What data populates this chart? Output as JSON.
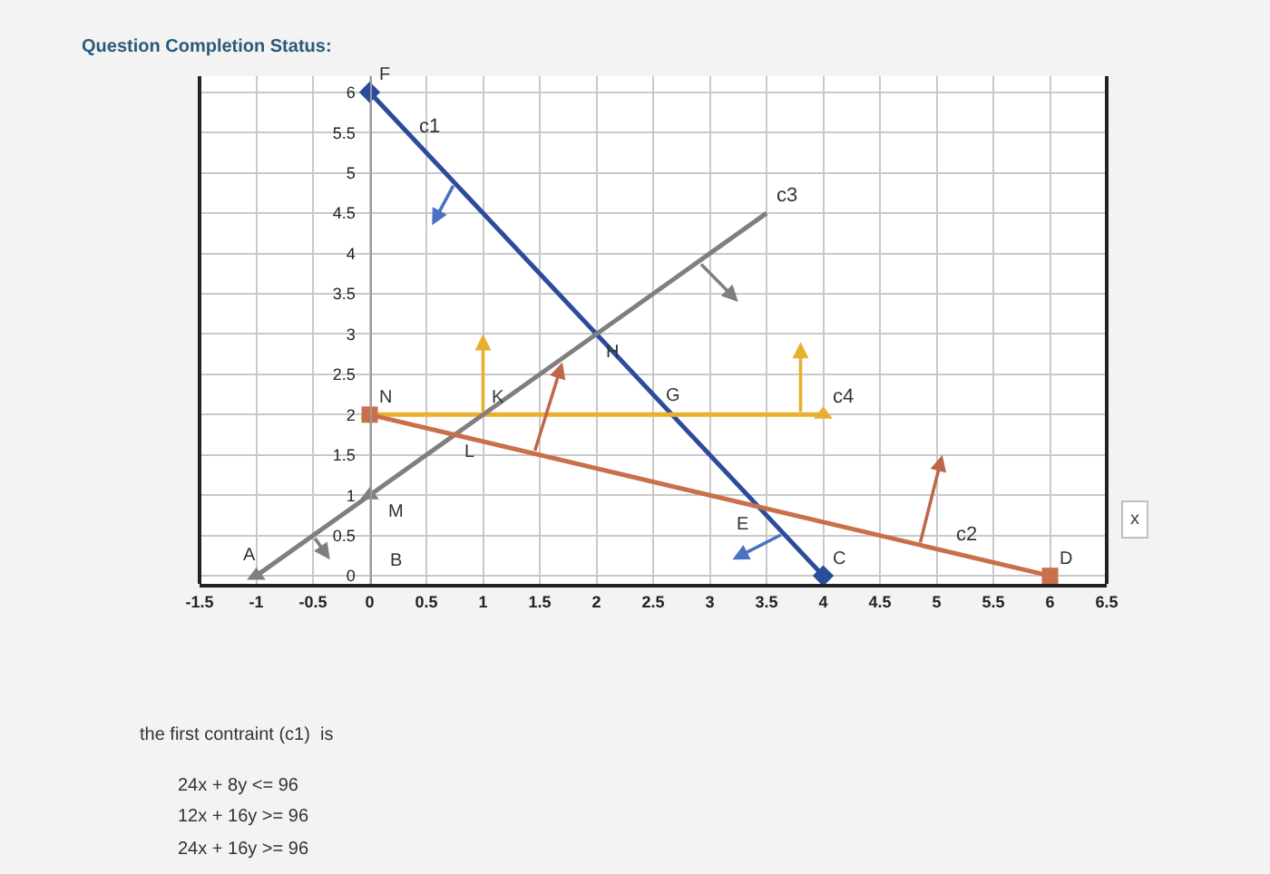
{
  "chart_data": {
    "type": "line",
    "title": "Question Completion Status:",
    "xlabel": "x",
    "xlim": [
      -1.5,
      6.5
    ],
    "ylim": [
      -0.1,
      6.2
    ],
    "xticks": [
      -1.5,
      -1,
      -0.5,
      0,
      0.5,
      1,
      1.5,
      2,
      2.5,
      3,
      3.5,
      4,
      4.5,
      5,
      5.5,
      6,
      6.5
    ],
    "yticks": [
      0,
      0.5,
      1,
      1.5,
      2,
      2.5,
      3,
      3.5,
      4,
      4.5,
      5,
      5.5,
      6
    ],
    "grid": true,
    "series": [
      {
        "color": "#2b4c9b",
        "marker": "diamond",
        "x": [
          0,
          4
        ],
        "values": [
          6,
          0
        ]
      },
      {
        "color": "#e8b030",
        "marker": "triangle",
        "x": [
          0,
          4
        ],
        "values": [
          2,
          2
        ]
      },
      {
        "color": "#7f7f7f",
        "x": [
          0,
          3.5
        ],
        "values": [
          1,
          4.5
        ]
      },
      {
        "color": "#7f7f7f",
        "marker": "triangle",
        "x": [
          -1,
          0
        ],
        "values": [
          0,
          1
        ]
      },
      {
        "color": "#c8704a",
        "marker": "square",
        "x": [
          0,
          6
        ],
        "values": [
          2,
          0
        ]
      }
    ],
    "annotations": [
      {
        "text": "F",
        "x": 0,
        "y": 6
      },
      {
        "text": "c1",
        "x": 0.4,
        "y": 5.4
      },
      {
        "text": "N",
        "x": 0,
        "y": 2
      },
      {
        "text": "K",
        "x": 1,
        "y": 2
      },
      {
        "text": "L",
        "x": 0.75,
        "y": 1.75
      },
      {
        "text": "H",
        "x": 2,
        "y": 3
      },
      {
        "text": "G",
        "x": 2.67,
        "y": 2
      },
      {
        "text": "E",
        "x": 3.43,
        "y": 0.86
      },
      {
        "text": "M",
        "x": 0,
        "y": 1
      },
      "B",
      {
        "text": "A",
        "x": -1,
        "y": 0
      },
      {
        "text": "C",
        "x": 4,
        "y": 0
      },
      {
        "text": "D",
        "x": 6,
        "y": 0
      },
      {
        "text": "c2",
        "x": 5.1,
        "y": 0.3
      },
      {
        "text": "c3",
        "x": 3.5,
        "y": 4.5
      },
      {
        "text": "c4",
        "x": 4,
        "y": 2
      },
      "the first contraint (c1)  is",
      "24x + 8y <= 96",
      "12x + 16y >= 96",
      "24x + 16y >= 96"
    ]
  }
}
